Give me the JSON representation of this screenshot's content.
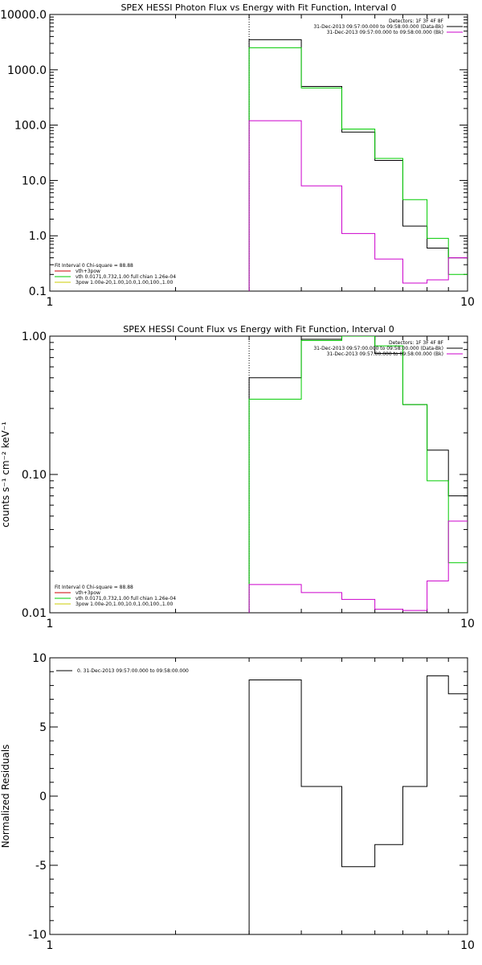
{
  "chart_data": [
    {
      "type": "line",
      "title": "SPEX HESSI Photon Flux vs Energy with Fit Function, Interval 0",
      "xscale": "log",
      "yscale": "log",
      "xlim": [
        1,
        10
      ],
      "ylim": [
        0.1,
        10000
      ],
      "x_ticks": [
        "1",
        "10"
      ],
      "y_ticks": [
        {
          "v": 0.1,
          "label": "0.1"
        },
        {
          "v": 1,
          "label": "1.0"
        },
        {
          "v": 10,
          "label": "10.0"
        },
        {
          "v": 100,
          "label": "100.0"
        },
        {
          "v": 1000,
          "label": "1000.0"
        },
        {
          "v": 10000,
          "label": "10000.0"
        }
      ],
      "dotted_line_x": 3,
      "legend_top_right": [
        {
          "text": "Detectors: 1F 3F 4F 8F",
          "color": ""
        },
        {
          "text": "31-Dec-2013 09:57:00.000 to 09:58:00.000 (Data-Bk)",
          "color": "#000000"
        },
        {
          "text": "31-Dec-2013 09:57:00.000 to 09:58:00.000 (Bk)",
          "color": "#cc00cc"
        }
      ],
      "legend_bottom_left": [
        {
          "text": "Fit Interval 0   Chi-square = 88.88",
          "color": ""
        },
        {
          "text": "vth+3pow",
          "color": "#cc0000"
        },
        {
          "text": "vth 0.0171,0.732,1.00  full chian 1.26e-04",
          "color": "#00cc00"
        },
        {
          "text": "3pow 1.00e-20,1.00,10.0,1.00,100.,1.00",
          "color": "#cccc00"
        }
      ],
      "edges": [
        3,
        4,
        5,
        6,
        7,
        8,
        9,
        10
      ],
      "series": [
        {
          "color": "#000000",
          "values": [
            3500,
            500,
            75,
            23,
            1.5,
            0.6,
            0.4
          ]
        },
        {
          "color": "#00cc00",
          "values": [
            2500,
            470,
            85,
            25,
            4.5,
            0.9,
            0.2
          ]
        },
        {
          "color": "#cc00cc",
          "values": [
            120,
            8,
            1.1,
            0.38,
            0.14,
            0.16,
            0.4
          ]
        }
      ]
    },
    {
      "type": "line",
      "title": "SPEX HESSI Count Flux vs Energy with Fit Function, Interval 0",
      "ylabel": "counts s⁻¹ cm⁻² keV⁻¹",
      "xscale": "log",
      "yscale": "log",
      "xlim": [
        1,
        10
      ],
      "ylim": [
        0.01,
        1.0
      ],
      "x_ticks": [
        "1",
        "10"
      ],
      "y_ticks": [
        {
          "v": 0.01,
          "label": "0.01"
        },
        {
          "v": 0.1,
          "label": "0.10"
        },
        {
          "v": 1.0,
          "label": "1.00"
        }
      ],
      "dotted_line_x": 3,
      "legend_top_right": [
        {
          "text": "Detectors: 1F 3F 4F 8F",
          "color": ""
        },
        {
          "text": "31-Dec-2013 09:57:00.000 to 09:58:00.000 (Data-Bk)",
          "color": "#000000"
        },
        {
          "text": "31-Dec-2013 09:57:00.000 to 09:58:00.000 (Bk)",
          "color": "#cc00cc"
        }
      ],
      "legend_bottom_left": [
        {
          "text": "Fit Interval 0   Chi-square = 88.88",
          "color": ""
        },
        {
          "text": "vth+3pow",
          "color": "#cc0000"
        },
        {
          "text": "vth 0.0171,0.732,1.00  full chian 1.26e-04",
          "color": "#00cc00"
        },
        {
          "text": "3pow 1.00e-20,1.00,10.0,1.00,100.,1.00",
          "color": "#cccc00"
        }
      ],
      "edges": [
        3,
        4,
        5,
        6,
        7,
        8,
        9,
        10
      ],
      "series": [
        {
          "color": "#000000",
          "values": [
            0.5,
            0.95,
            1.0,
            0.75,
            0.32,
            0.15,
            0.07
          ]
        },
        {
          "color": "#00cc00",
          "values": [
            0.35,
            0.93,
            1.0,
            0.85,
            0.32,
            0.09,
            0.023
          ]
        },
        {
          "color": "#cc00cc",
          "values": [
            0.016,
            0.014,
            0.0125,
            0.0106,
            0.0104,
            0.017,
            0.046
          ]
        }
      ]
    },
    {
      "type": "line",
      "ylabel": "Normalized Residuals",
      "xscale": "log",
      "yscale": "linear",
      "xlim": [
        1,
        10
      ],
      "ylim": [
        -10,
        10
      ],
      "x_ticks": [
        "1",
        "10"
      ],
      "y_ticks": [
        {
          "v": -10,
          "label": "-10"
        },
        {
          "v": -5,
          "label": "-5"
        },
        {
          "v": 0,
          "label": "0"
        },
        {
          "v": 5,
          "label": "5"
        },
        {
          "v": 10,
          "label": "10"
        }
      ],
      "legend_top_left": [
        {
          "text": "0. 31-Dec-2013 09:57:00.000 to 09:58:00.000",
          "color": "#000000"
        }
      ],
      "edges": [
        3,
        4,
        5,
        6,
        7,
        8,
        9,
        10
      ],
      "series": [
        {
          "color": "#000000",
          "values": [
            8.4,
            0.7,
            -5.1,
            -3.5,
            0.7,
            8.7,
            7.4
          ]
        }
      ]
    }
  ]
}
